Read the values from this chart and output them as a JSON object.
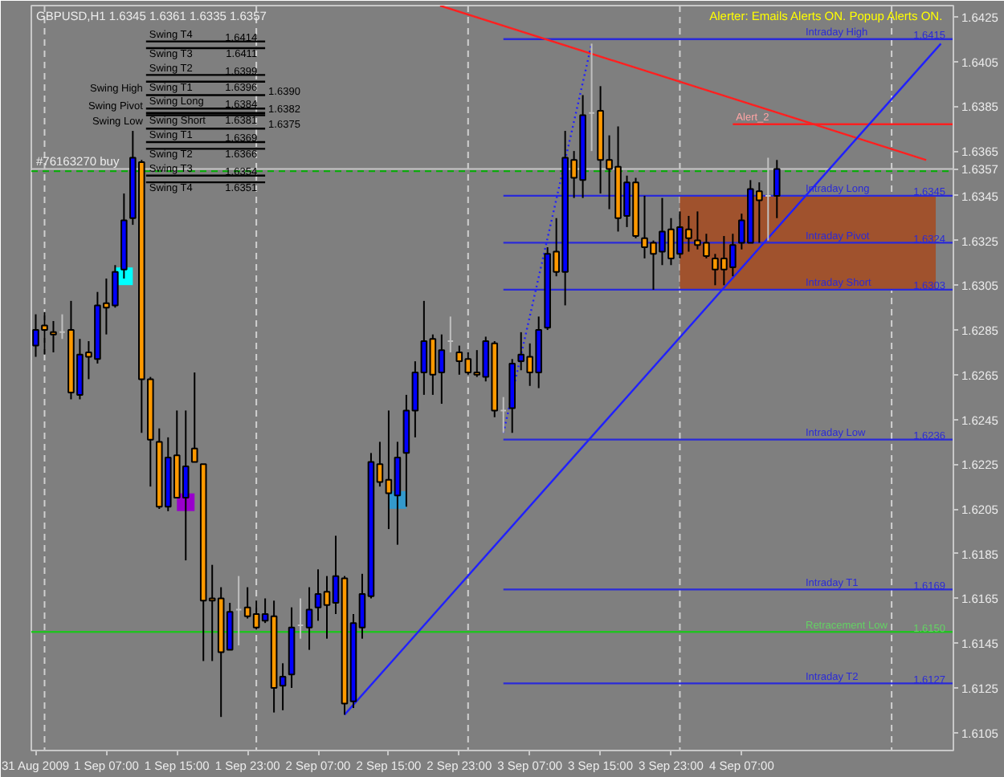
{
  "chart_data": {
    "type": "candlestick",
    "title": "GBPUSD,H1 1.6345 1.6361 1.6335 1.6357",
    "x": [
      "2009-08-31T23:00",
      "2009-09-01T00:00",
      "2009-09-01T01:00",
      "2009-09-01T02:00",
      "2009-09-01T03:00",
      "2009-09-01T04:00",
      "2009-09-01T05:00",
      "2009-09-01T06:00",
      "2009-09-01T07:00",
      "2009-09-01T08:00",
      "2009-09-01T09:00",
      "2009-09-01T10:00",
      "2009-09-01T11:00",
      "2009-09-01T12:00",
      "2009-09-01T13:00",
      "2009-09-01T14:00",
      "2009-09-01T15:00",
      "2009-09-01T16:00",
      "2009-09-01T17:00",
      "2009-09-01T18:00",
      "2009-09-01T19:00",
      "2009-09-01T20:00",
      "2009-09-01T21:00",
      "2009-09-01T22:00",
      "2009-09-01T23:00",
      "2009-09-02T00:00",
      "2009-09-02T01:00",
      "2009-09-02T02:00",
      "2009-09-02T03:00",
      "2009-09-02T04:00",
      "2009-09-02T05:00",
      "2009-09-02T06:00",
      "2009-09-02T07:00",
      "2009-09-02T08:00",
      "2009-09-02T09:00",
      "2009-09-02T10:00",
      "2009-09-02T11:00",
      "2009-09-02T12:00",
      "2009-09-02T13:00",
      "2009-09-02T14:00",
      "2009-09-02T15:00",
      "2009-09-02T16:00",
      "2009-09-02T17:00",
      "2009-09-02T18:00",
      "2009-09-02T19:00",
      "2009-09-02T20:00",
      "2009-09-02T21:00",
      "2009-09-02T22:00",
      "2009-09-02T23:00",
      "2009-09-03T00:00",
      "2009-09-03T01:00",
      "2009-09-03T02:00",
      "2009-09-03T03:00",
      "2009-09-03T04:00",
      "2009-09-03T05:00",
      "2009-09-03T06:00",
      "2009-09-03T07:00",
      "2009-09-03T08:00",
      "2009-09-03T09:00",
      "2009-09-03T10:00",
      "2009-09-03T11:00",
      "2009-09-03T12:00",
      "2009-09-03T13:00",
      "2009-09-03T14:00",
      "2009-09-03T15:00",
      "2009-09-03T16:00",
      "2009-09-03T17:00",
      "2009-09-03T18:00",
      "2009-09-03T19:00",
      "2009-09-03T20:00",
      "2009-09-03T21:00",
      "2009-09-03T22:00",
      "2009-09-03T23:00",
      "2009-09-04T00:00",
      "2009-09-04T01:00",
      "2009-09-04T02:00",
      "2009-09-04T03:00",
      "2009-09-04T04:00",
      "2009-09-04T05:00",
      "2009-09-04T06:00",
      "2009-09-04T07:00",
      "2009-09-04T08:00",
      "2009-09-04T09:00",
      "2009-09-04T10:00",
      "2009-09-04T11:00"
    ],
    "ohlc": [
      [
        1.6278,
        1.6292,
        1.6273,
        1.6285
      ],
      [
        1.6287,
        1.6293,
        1.6274,
        1.6285
      ],
      [
        1.6284,
        1.6289,
        1.6275,
        1.6283
      ],
      [
        1.6284,
        1.6292,
        1.6281,
        1.6284
      ],
      [
        1.6285,
        1.6298,
        1.6254,
        1.6257
      ],
      [
        1.6256,
        1.6281,
        1.6254,
        1.6274
      ],
      [
        1.6275,
        1.628,
        1.6263,
        1.6273
      ],
      [
        1.6272,
        1.6302,
        1.627,
        1.6296
      ],
      [
        1.6297,
        1.6308,
        1.6283,
        1.6295
      ],
      [
        1.6296,
        1.6314,
        1.6295,
        1.6311
      ],
      [
        1.6312,
        1.6346,
        1.6308,
        1.6334
      ],
      [
        1.6335,
        1.6374,
        1.6332,
        1.6362
      ],
      [
        1.636,
        1.6361,
        1.6239,
        1.6263
      ],
      [
        1.6263,
        1.6264,
        1.6215,
        1.6236
      ],
      [
        1.6235,
        1.6241,
        1.6205,
        1.6206
      ],
      [
        1.6206,
        1.6237,
        1.6204,
        1.6228
      ],
      [
        1.6229,
        1.6249,
        1.621,
        1.621
      ],
      [
        1.621,
        1.6249,
        1.6182,
        1.6224
      ],
      [
        1.6232,
        1.6266,
        1.6226,
        1.6226
      ],
      [
        1.6225,
        1.6225,
        1.6137,
        1.6164
      ],
      [
        1.6165,
        1.618,
        1.6137,
        1.6164
      ],
      [
        1.6165,
        1.617,
        1.6112,
        1.6141
      ],
      [
        1.6142,
        1.6163,
        1.6142,
        1.6159
      ],
      [
        1.616,
        1.6175,
        1.6144,
        1.616
      ],
      [
        1.6161,
        1.617,
        1.6156,
        1.6157
      ],
      [
        1.6158,
        1.6164,
        1.6151,
        1.6152
      ],
      [
        1.6155,
        1.6165,
        1.6154,
        1.6158
      ],
      [
        1.6157,
        1.6164,
        1.6114,
        1.6125
      ],
      [
        1.6126,
        1.6136,
        1.6115,
        1.613
      ],
      [
        1.6131,
        1.6161,
        1.6125,
        1.6152
      ],
      [
        1.6153,
        1.6165,
        1.6147,
        1.6153
      ],
      [
        1.6152,
        1.617,
        1.6142,
        1.616
      ],
      [
        1.6161,
        1.6178,
        1.6155,
        1.6167
      ],
      [
        1.6168,
        1.6175,
        1.6147,
        1.6162
      ],
      [
        1.6163,
        1.6193,
        1.6158,
        1.6175
      ],
      [
        1.6174,
        1.6175,
        1.6113,
        1.6118
      ],
      [
        1.6119,
        1.6158,
        1.6116,
        1.6154
      ],
      [
        1.6152,
        1.6176,
        1.6147,
        1.6167
      ],
      [
        1.6166,
        1.623,
        1.6165,
        1.6226
      ],
      [
        1.6225,
        1.6235,
        1.6215,
        1.6217
      ],
      [
        1.6218,
        1.6249,
        1.6196,
        1.6212
      ],
      [
        1.6211,
        1.6235,
        1.6189,
        1.6228
      ],
      [
        1.623,
        1.6256,
        1.6206,
        1.6249
      ],
      [
        1.6249,
        1.6271,
        1.6237,
        1.6266
      ],
      [
        1.6266,
        1.6298,
        1.6256,
        1.628
      ],
      [
        1.6281,
        1.6283,
        1.6256,
        1.6265
      ],
      [
        1.6266,
        1.6283,
        1.6252,
        1.6276
      ],
      [
        1.628,
        1.6291,
        1.6275,
        1.628
      ],
      [
        1.6275,
        1.6278,
        1.6265,
        1.6271
      ],
      [
        1.6272,
        1.6275,
        1.6265,
        1.6266
      ],
      [
        1.6266,
        1.6276,
        1.6264,
        1.6265
      ],
      [
        1.6264,
        1.6282,
        1.6262,
        1.628
      ],
      [
        1.6279,
        1.628,
        1.6246,
        1.6249
      ],
      [
        1.6249,
        1.6255,
        1.6239,
        1.6249
      ],
      [
        1.625,
        1.6272,
        1.6239,
        1.627
      ],
      [
        1.6271,
        1.6284,
        1.6267,
        1.6274
      ],
      [
        1.6273,
        1.6279,
        1.626,
        1.6266
      ],
      [
        1.6266,
        1.6291,
        1.6259,
        1.6285
      ],
      [
        1.6286,
        1.6322,
        1.6285,
        1.6319
      ],
      [
        1.632,
        1.6335,
        1.6309,
        1.6311
      ],
      [
        1.6311,
        1.6374,
        1.6296,
        1.6362
      ],
      [
        1.6361,
        1.6365,
        1.6344,
        1.6353
      ],
      [
        1.6352,
        1.639,
        1.6344,
        1.6381
      ],
      [
        1.6382,
        1.6413,
        1.6365,
        1.6382
      ],
      [
        1.6383,
        1.6394,
        1.6346,
        1.6361
      ],
      [
        1.6361,
        1.6372,
        1.6339,
        1.6357
      ],
      [
        1.6358,
        1.6376,
        1.6329,
        1.6335
      ],
      [
        1.6336,
        1.6354,
        1.6331,
        1.6351
      ],
      [
        1.6351,
        1.6353,
        1.6326,
        1.6327
      ],
      [
        1.6326,
        1.6345,
        1.6317,
        1.6322
      ],
      [
        1.6324,
        1.6325,
        1.6303,
        1.6319
      ],
      [
        1.632,
        1.6344,
        1.6314,
        1.6329
      ],
      [
        1.633,
        1.6335,
        1.6314,
        1.6317
      ],
      [
        1.6319,
        1.6338,
        1.6317,
        1.6331
      ],
      [
        1.633,
        1.6336,
        1.632,
        1.6326
      ],
      [
        1.6325,
        1.6338,
        1.6321,
        1.6323
      ],
      [
        1.6324,
        1.6328,
        1.6317,
        1.6318
      ],
      [
        1.6317,
        1.6319,
        1.6305,
        1.6312
      ],
      [
        1.6317,
        1.6327,
        1.6305,
        1.6312
      ],
      [
        1.6313,
        1.6328,
        1.6309,
        1.6323
      ],
      [
        1.6324,
        1.6337,
        1.6321,
        1.6334
      ],
      [
        1.6324,
        1.6352,
        1.6324,
        1.6348
      ],
      [
        1.6347,
        1.6351,
        1.6324,
        1.6343
      ],
      [
        1.6345,
        1.6362,
        1.6325,
        1.6345
      ],
      [
        1.6345,
        1.6361,
        1.6335,
        1.6357
      ]
    ],
    "colors": [
      "#0000ff",
      "#ff9900",
      "#ff9900",
      "#c0c0c0",
      "#ff9900",
      "#0000ff",
      "#ff9900",
      "#0000ff",
      "#ff9900",
      "#0000ff",
      "#0000ff",
      "#0000ff",
      "#ff9900",
      "#ff9900",
      "#ff9900",
      "#0000ff",
      "#ff9900",
      "#0000ff",
      "#ff9900",
      "#ff9900",
      "#ff9900",
      "#ff9900",
      "#0000ff",
      "#c0c0c0",
      "#ff9900",
      "#ff9900",
      "#0000ff",
      "#ff9900",
      "#0000ff",
      "#0000ff",
      "#c0c0c0",
      "#0000ff",
      "#0000ff",
      "#ff9900",
      "#0000ff",
      "#ff9900",
      "#0000ff",
      "#0000ff",
      "#0000ff",
      "#ff9900",
      "#ff9900",
      "#0000ff",
      "#0000ff",
      "#0000ff",
      "#0000ff",
      "#ff9900",
      "#0000ff",
      "#c0c0c0",
      "#ff9900",
      "#ff9900",
      "#ff9900",
      "#0000ff",
      "#ff9900",
      "#c0c0c0",
      "#0000ff",
      "#0000ff",
      "#ff9900",
      "#0000ff",
      "#0000ff",
      "#ff9900",
      "#0000ff",
      "#ff9900",
      "#0000ff",
      "#c0c0c0",
      "#ff9900",
      "#ff9900",
      "#ff9900",
      "#0000ff",
      "#ff9900",
      "#ff9900",
      "#ff9900",
      "#0000ff",
      "#ff9900",
      "#0000ff",
      "#ff9900",
      "#ff9900",
      "#ff9900",
      "#ff9900",
      "#ff9900",
      "#0000ff",
      "#0000ff",
      "#0000ff",
      "#ff9900",
      "#c0c0c0",
      "#0000ff"
    ],
    "xlim": [
      "2009-08-31T22:30",
      "2009-09-05T07:00"
    ],
    "xticks": [
      {
        "value": "2009-08-31T23:00",
        "label": "31 Aug 2009"
      },
      {
        "value": "2009-09-01T07:00",
        "label": "1 Sep 07:00"
      },
      {
        "value": "2009-09-01T15:00",
        "label": "1 Sep 15:00"
      },
      {
        "value": "2009-09-01T23:00",
        "label": "1 Sep 23:00"
      },
      {
        "value": "2009-09-02T07:00",
        "label": "2 Sep 07:00"
      },
      {
        "value": "2009-09-02T15:00",
        "label": "2 Sep 15:00"
      },
      {
        "value": "2009-09-02T23:00",
        "label": "2 Sep 23:00"
      },
      {
        "value": "2009-09-03T07:00",
        "label": "3 Sep 07:00"
      },
      {
        "value": "2009-09-03T15:00",
        "label": "3 Sep 15:00"
      },
      {
        "value": "2009-09-03T23:00",
        "label": "3 Sep 23:00"
      },
      {
        "value": "2009-09-04T07:00",
        "label": "4 Sep 07:00"
      }
    ],
    "ylim": [
      1.6097,
      1.643
    ],
    "yticks": [
      1.6105,
      1.6125,
      1.6145,
      1.6165,
      1.6185,
      1.6205,
      1.6225,
      1.6245,
      1.6265,
      1.6285,
      1.6305,
      1.6325,
      1.6345,
      1.6357,
      1.6365,
      1.6385,
      1.6405,
      1.6425
    ],
    "ref_lines": [
      {
        "axis": "x",
        "value": "2009-09-01T00:00",
        "color": "#d0d0d0",
        "line_style": "dashed"
      },
      {
        "axis": "x",
        "value": "2009-09-02T00:00",
        "color": "#d0d0d0",
        "line_style": "dashed"
      },
      {
        "axis": "x",
        "value": "2009-09-03T00:00",
        "color": "#d0d0d0",
        "line_style": "dashed"
      },
      {
        "axis": "x",
        "value": "2009-09-04T00:00",
        "color": "#d0d0d0",
        "line_style": "dashed"
      },
      {
        "axis": "x",
        "value": "2009-09-05T00:00",
        "color": "#d0d0d0",
        "line_style": "dashed"
      },
      {
        "axis": "y",
        "value": 1.6357,
        "color": "#c8c8c8"
      },
      {
        "axis": "y",
        "value": 1.6356,
        "label": "#76163270 buy",
        "color": "#00b000",
        "line_style": "dashed"
      }
    ],
    "series": [
      {
        "type": "line",
        "color": "#a0522d",
        "x": [
          "2009-09-04T00:00",
          "2009-09-05T05:00"
        ],
        "values": [
          null,
          null
        ],
        "lower": [
          1.6303,
          1.6303
        ],
        "upper": [
          1.6345,
          1.6345
        ]
      },
      {
        "type": "line",
        "name": "Intraday High",
        "color": "#2a2ad8",
        "x": [
          "2009-09-03T04:00",
          "2009-09-05T07:00"
        ],
        "values": [
          1.6415,
          1.6415
        ],
        "value_labels": [
          null,
          "1.6415"
        ]
      },
      {
        "type": "line",
        "name": "Intraday Long",
        "color": "#2a2ad8",
        "x": [
          "2009-09-03T04:00",
          "2009-09-05T07:00"
        ],
        "values": [
          1.6345,
          1.6345
        ],
        "value_labels": [
          null,
          "1.6345"
        ]
      },
      {
        "type": "line",
        "name": "Intraday Pivot",
        "color": "#2a2ad8",
        "x": [
          "2009-09-03T04:00",
          "2009-09-05T07:00"
        ],
        "values": [
          1.6324,
          1.6324
        ],
        "value_labels": [
          null,
          "1.6324"
        ]
      },
      {
        "type": "line",
        "name": "Intraday Short",
        "color": "#2a2ad8",
        "x": [
          "2009-09-03T04:00",
          "2009-09-05T07:00"
        ],
        "values": [
          1.6303,
          1.6303
        ],
        "value_labels": [
          null,
          "1.6303"
        ]
      },
      {
        "type": "line",
        "name": "Intraday Low",
        "color": "#2a2ad8",
        "x": [
          "2009-09-03T04:00",
          "2009-09-05T07:00"
        ],
        "values": [
          1.6236,
          1.6236
        ],
        "value_labels": [
          null,
          "1.6236"
        ]
      },
      {
        "type": "line",
        "name": "Intraday T1",
        "color": "#2a2ad8",
        "x": [
          "2009-09-03T04:00",
          "2009-09-05T07:00"
        ],
        "values": [
          1.6169,
          1.6169
        ],
        "value_labels": [
          null,
          "1.6169"
        ]
      },
      {
        "type": "line",
        "name": "Intraday T2",
        "color": "#2a2ad8",
        "x": [
          "2009-09-03T04:00",
          "2009-09-05T07:00"
        ],
        "values": [
          1.6127,
          1.6127
        ],
        "value_labels": [
          null,
          "1.6127"
        ]
      },
      {
        "type": "line",
        "name": "Retracement Low",
        "color": "#22c022",
        "x": [
          "2009-08-31T22:30",
          "2009-09-05T07:00"
        ],
        "values": [
          1.615,
          1.615
        ],
        "value_labels": [
          null,
          "1.6150"
        ]
      },
      {
        "type": "line",
        "name": "Swing T4",
        "color": "#000000",
        "x": [
          "2009-09-01T11:30",
          "2009-09-02T01:00"
        ],
        "values": [
          1.6414,
          1.6414
        ],
        "value_labels": [
          null,
          "1.6414"
        ]
      },
      {
        "type": "line",
        "name": "Swing T3",
        "color": "#000000",
        "x": [
          "2009-09-01T11:30",
          "2009-09-02T01:00"
        ],
        "values": [
          1.6411,
          1.6411
        ],
        "value_labels": [
          null,
          "1.6411"
        ]
      },
      {
        "type": "line",
        "name": "Swing T2",
        "color": "#000000",
        "x": [
          "2009-09-01T11:30",
          "2009-09-02T01:00"
        ],
        "values": [
          1.6399,
          1.6399
        ],
        "value_labels": [
          null,
          "1.6399"
        ]
      },
      {
        "type": "line",
        "name": "Swing T1",
        "color": "#000000",
        "x": [
          "2009-09-01T11:30",
          "2009-09-02T01:00"
        ],
        "values": [
          1.6396,
          1.6396
        ],
        "value_labels": [
          null,
          "1.6396"
        ]
      },
      {
        "type": "line",
        "name": "Swing High",
        "color": "#000000",
        "x": [
          "2009-09-01T11:30",
          "2009-09-02T01:00"
        ],
        "values": [
          1.639,
          1.639
        ],
        "value_labels": [
          null,
          "1.6390"
        ]
      },
      {
        "type": "line",
        "name": "Swing Long",
        "color": "#000000",
        "x": [
          "2009-09-01T11:30",
          "2009-09-02T01:00"
        ],
        "values": [
          1.6384,
          1.6384
        ],
        "value_labels": [
          null,
          "1.6384"
        ]
      },
      {
        "type": "line",
        "name": "Swing Pivot",
        "color": "#000000",
        "x": [
          "2009-09-01T11:30",
          "2009-09-02T01:00"
        ],
        "values": [
          1.6382,
          1.6382
        ],
        "value_labels": [
          null,
          "1.6382"
        ]
      },
      {
        "type": "line",
        "name": "Swing Short",
        "color": "#000000",
        "x": [
          "2009-09-01T11:30",
          "2009-09-02T01:00"
        ],
        "values": [
          1.6381,
          1.6381
        ],
        "value_labels": [
          null,
          "1.6381"
        ]
      },
      {
        "type": "line",
        "name": "Swing Low",
        "color": "#000000",
        "x": [
          "2009-09-01T11:30",
          "2009-09-02T01:00"
        ],
        "values": [
          1.6375,
          1.6375
        ],
        "value_labels": [
          null,
          "1.6375"
        ]
      },
      {
        "type": "line",
        "name": "Swing T1",
        "color": "#000000",
        "x": [
          "2009-09-01T11:30",
          "2009-09-02T01:00"
        ],
        "values": [
          1.6369,
          1.6369
        ],
        "value_labels": [
          null,
          "1.6369"
        ]
      },
      {
        "type": "line",
        "name": "Swing T2",
        "color": "#000000",
        "x": [
          "2009-09-01T11:30",
          "2009-09-02T01:00"
        ],
        "values": [
          1.6366,
          1.6366
        ],
        "value_labels": [
          null,
          "1.6366"
        ]
      },
      {
        "type": "line",
        "name": "Swing T3",
        "color": "#000000",
        "x": [
          "2009-09-01T11:30",
          "2009-09-02T01:00"
        ],
        "values": [
          1.6354,
          1.6354
        ],
        "value_labels": [
          null,
          "1.6354"
        ]
      },
      {
        "type": "line",
        "name": "Swing T4",
        "color": "#000000",
        "x": [
          "2009-09-01T11:30",
          "2009-09-02T01:00"
        ],
        "values": [
          1.6351,
          1.6351
        ],
        "value_labels": [
          null,
          "1.6351"
        ]
      },
      {
        "type": "line",
        "name": "Alert_2",
        "color": "#ff2020",
        "x": [
          "2009-09-04T06:00",
          "2009-09-05T07:00"
        ],
        "values": [
          1.6377,
          1.6377
        ]
      },
      {
        "type": "line",
        "color": "#ff2020",
        "x": [
          "2009-09-02T20:50",
          "2009-09-05T03:55"
        ],
        "values": [
          1.643,
          1.6361
        ]
      },
      {
        "type": "line",
        "color": "#2020ff",
        "x": [
          "2009-09-02T10:00",
          "2009-09-05T05:35"
        ],
        "values": [
          1.6113,
          1.6413
        ]
      },
      {
        "type": "line",
        "color": "#2020ff",
        "line_style": "dotted",
        "x": [
          "2009-09-03T04:00",
          "2009-09-03T14:00"
        ],
        "values": [
          1.6239,
          1.6413
        ]
      },
      {
        "type": "scatter",
        "marker": "square",
        "x": [
          "2009-09-01T09:00",
          "2009-09-01T16:00",
          "2009-09-02T16:00"
        ],
        "values": [
          1.6309,
          1.6208,
          1.6209
        ],
        "colors": [
          "#00ffff",
          "#9900cc",
          "#3399cc"
        ]
      }
    ],
    "annotations": [
      "Alerter: Emails Alerts ON. Popup Alerts ON."
    ]
  }
}
